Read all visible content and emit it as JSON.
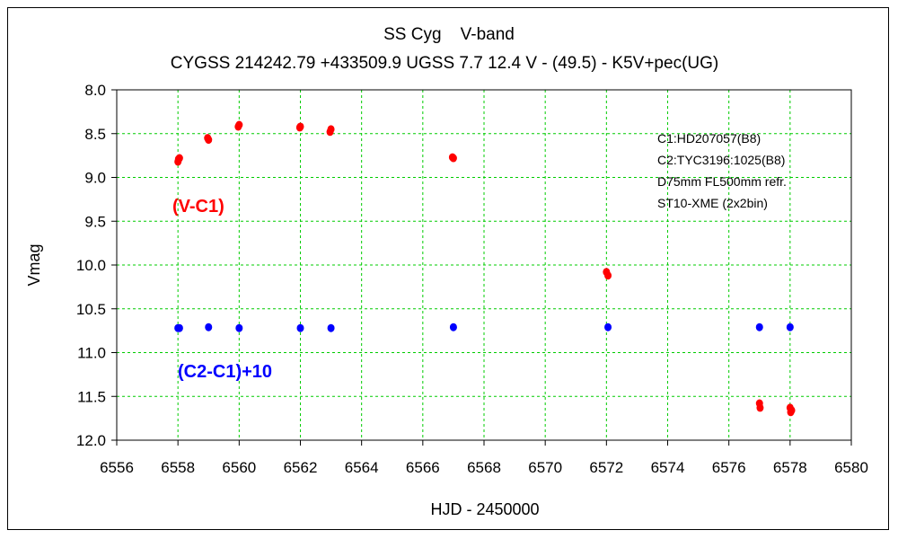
{
  "chart_data": {
    "type": "scatter",
    "title": "SS Cyg    V-band",
    "subtitle": "CYGSS 214242.79 +433509.9 UGSS 7.7 12.4 V - (49.5) - K5V+pec(UG)",
    "xlabel": "HJD - 2450000",
    "ylabel": "Vmag",
    "xlim": [
      6556,
      6580
    ],
    "ylim": [
      8.0,
      12.0
    ],
    "y_inverted": true,
    "grid": true,
    "xticks": [
      "6556",
      "6558",
      "6560",
      "6562",
      "6564",
      "6566",
      "6568",
      "6570",
      "6572",
      "6574",
      "6576",
      "6578",
      "6580"
    ],
    "yticks": [
      "8.0",
      "8.5",
      "9.0",
      "9.5",
      "10.0",
      "10.5",
      "11.0",
      "11.5",
      "12.0"
    ],
    "notes": [
      "C1:HD207057(B8)",
      "C2:TYC3196:1025(B8)",
      "D75mm  FL500mm  refr.",
      "ST10-XME (2x2bin)"
    ],
    "series": [
      {
        "name": "(V-C1)",
        "color": "#ff0000",
        "points": [
          [
            6558.0,
            8.82
          ],
          [
            6558.02,
            8.79
          ],
          [
            6558.05,
            8.78
          ],
          [
            6558.97,
            8.55
          ],
          [
            6559.0,
            8.57
          ],
          [
            6559.97,
            8.42
          ],
          [
            6560.0,
            8.4
          ],
          [
            6561.98,
            8.43
          ],
          [
            6562.0,
            8.42
          ],
          [
            6562.97,
            8.48
          ],
          [
            6563.0,
            8.45
          ],
          [
            6566.97,
            8.77
          ],
          [
            6567.0,
            8.78
          ],
          [
            6572.0,
            10.08
          ],
          [
            6572.05,
            10.12
          ],
          [
            6577.0,
            11.58
          ],
          [
            6577.02,
            11.63
          ],
          [
            6578.0,
            11.63
          ],
          [
            6578.02,
            11.68
          ],
          [
            6578.05,
            11.66
          ]
        ]
      },
      {
        "name": "(C2-C1)+10",
        "color": "#0000ff",
        "points": [
          [
            6558.0,
            10.72
          ],
          [
            6558.05,
            10.72
          ],
          [
            6559.0,
            10.71
          ],
          [
            6560.0,
            10.72
          ],
          [
            6562.0,
            10.72
          ],
          [
            6563.0,
            10.72
          ],
          [
            6567.0,
            10.71
          ],
          [
            6572.05,
            10.71
          ],
          [
            6577.0,
            10.71
          ],
          [
            6578.0,
            10.71
          ]
        ]
      }
    ]
  }
}
